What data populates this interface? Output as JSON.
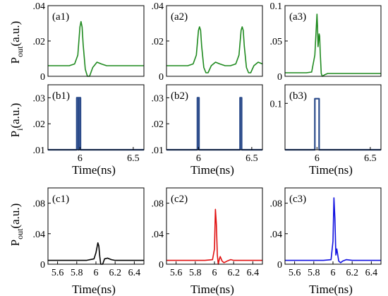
{
  "figure": {
    "ylabel_top": "P",
    "ylabel_top_sub": "out",
    "ylabel_top_unit": "(a.u.)",
    "ylabel_mid": "P",
    "ylabel_mid_sub": "i",
    "ylabel_mid_unit": "(a.u.)",
    "ylabel_bot": "P",
    "ylabel_bot_sub": "out",
    "ylabel_bot_unit": "(a.u.)",
    "xlabel": "Time(ns)"
  },
  "chart_data": [
    {
      "id": "a1",
      "label": "(a1)",
      "type": "line",
      "xlim": [
        5.7,
        6.6
      ],
      "ylim": [
        0,
        0.04
      ],
      "yticks": [
        0,
        0.02,
        0.04
      ],
      "xticks": [],
      "color": "#1f8a1f",
      "x": [
        5.7,
        5.8,
        5.9,
        5.95,
        5.98,
        6.0,
        6.01,
        6.02,
        6.03,
        6.05,
        6.07,
        6.09,
        6.12,
        6.16,
        6.2,
        6.25,
        6.3,
        6.4,
        6.5,
        6.6
      ],
      "y": [
        0.006,
        0.006,
        0.006,
        0.007,
        0.012,
        0.028,
        0.031,
        0.028,
        0.018,
        0.004,
        0.0,
        0.0,
        0.005,
        0.008,
        0.007,
        0.006,
        0.006,
        0.006,
        0.006,
        0.006
      ]
    },
    {
      "id": "a2",
      "label": "(a2)",
      "type": "line",
      "xlim": [
        5.7,
        6.6
      ],
      "ylim": [
        0,
        0.04
      ],
      "yticks": [
        0,
        0.02,
        0.04
      ],
      "xticks": [],
      "color": "#1f8a1f",
      "x": [
        5.7,
        5.8,
        5.9,
        5.95,
        5.98,
        6.0,
        6.01,
        6.02,
        6.03,
        6.05,
        6.07,
        6.09,
        6.12,
        6.16,
        6.2,
        6.25,
        6.3,
        6.35,
        6.38,
        6.4,
        6.41,
        6.42,
        6.43,
        6.45,
        6.47,
        6.49,
        6.52,
        6.56,
        6.6
      ],
      "y": [
        0.006,
        0.006,
        0.006,
        0.007,
        0.012,
        0.026,
        0.028,
        0.026,
        0.017,
        0.005,
        0.002,
        0.002,
        0.006,
        0.008,
        0.007,
        0.006,
        0.006,
        0.007,
        0.012,
        0.026,
        0.028,
        0.026,
        0.017,
        0.005,
        0.002,
        0.002,
        0.006,
        0.008,
        0.007
      ]
    },
    {
      "id": "a3",
      "label": "(a3)",
      "type": "line",
      "xlim": [
        5.7,
        6.6
      ],
      "ylim": [
        0,
        0.1
      ],
      "yticks": [
        0,
        0.05,
        0.1
      ],
      "xticks": [],
      "color": "#1f8a1f",
      "x": [
        5.7,
        5.8,
        5.9,
        5.95,
        5.98,
        6.0,
        6.005,
        6.01,
        6.02,
        6.025,
        6.03,
        6.04,
        6.05,
        6.07,
        6.1,
        6.15,
        6.2,
        6.3,
        6.4,
        6.5,
        6.6
      ],
      "y": [
        0.005,
        0.005,
        0.005,
        0.006,
        0.03,
        0.088,
        0.07,
        0.042,
        0.06,
        0.057,
        0.035,
        0.004,
        0.0,
        0.002,
        0.004,
        0.004,
        0.004,
        0.004,
        0.004,
        0.004,
        0.004
      ]
    },
    {
      "id": "b1",
      "label": "(b1)",
      "type": "line",
      "xlim": [
        5.7,
        6.6
      ],
      "ylim": [
        0.01,
        0.035
      ],
      "yticks": [
        0.01,
        0.02,
        0.03
      ],
      "xticks": [
        6,
        6.5
      ],
      "color": "#2a4a8a",
      "x": [
        5.7,
        5.97,
        5.97,
        5.985,
        5.985,
        5.99,
        5.99,
        6.005,
        6.005,
        6.6
      ],
      "y": [
        0.01,
        0.01,
        0.03,
        0.03,
        0.01,
        0.01,
        0.03,
        0.03,
        0.01,
        0.01
      ]
    },
    {
      "id": "b2",
      "label": "(b2)",
      "type": "line",
      "xlim": [
        5.7,
        6.6
      ],
      "ylim": [
        0.01,
        0.035
      ],
      "yticks": [
        0.01,
        0.02,
        0.03
      ],
      "xticks": [
        6,
        6.5
      ],
      "color": "#2a4a8a",
      "x": [
        5.7,
        5.99,
        5.99,
        6.005,
        6.005,
        6.39,
        6.39,
        6.405,
        6.405,
        6.6
      ],
      "y": [
        0.01,
        0.01,
        0.03,
        0.03,
        0.01,
        0.01,
        0.03,
        0.03,
        0.01,
        0.01
      ]
    },
    {
      "id": "b3",
      "label": "(b3)",
      "type": "line",
      "xlim": [
        5.7,
        6.6
      ],
      "ylim": [
        0,
        0.14
      ],
      "yticks": [
        0.1
      ],
      "xticks": [
        6,
        6.5
      ],
      "color": "#2a4a8a",
      "x": [
        5.7,
        5.98,
        5.98,
        6.02,
        6.02,
        6.6
      ],
      "y": [
        0.0,
        0.0,
        0.11,
        0.11,
        0.0,
        0.0
      ]
    },
    {
      "id": "c1",
      "label": "(c1)",
      "type": "line",
      "xlim": [
        5.5,
        6.5
      ],
      "ylim": [
        0,
        0.1
      ],
      "yticks": [
        0,
        0.04,
        0.08
      ],
      "xticks": [
        5.6,
        5.8,
        6,
        6.2,
        6.4
      ],
      "color": "#000000",
      "x": [
        5.5,
        5.7,
        5.9,
        5.98,
        6.0,
        6.02,
        6.03,
        6.04,
        6.05,
        6.07,
        6.09,
        6.12,
        6.16,
        6.2,
        6.3,
        6.4,
        6.5
      ],
      "y": [
        0.005,
        0.005,
        0.005,
        0.007,
        0.015,
        0.028,
        0.024,
        0.01,
        0.0,
        0.0,
        0.007,
        0.008,
        0.006,
        0.005,
        0.005,
        0.005,
        0.005
      ]
    },
    {
      "id": "c2",
      "label": "(c2)",
      "type": "line",
      "xlim": [
        5.5,
        6.5
      ],
      "ylim": [
        0,
        0.1
      ],
      "yticks": [
        0,
        0.04,
        0.08
      ],
      "xticks": [
        5.6,
        5.8,
        6,
        6.2,
        6.4
      ],
      "color": "#e01010",
      "x": [
        5.5,
        5.7,
        5.9,
        5.98,
        6.0,
        6.01,
        6.02,
        6.03,
        6.04,
        6.05,
        6.06,
        6.08,
        6.1,
        6.13,
        6.17,
        6.2,
        6.3,
        6.4,
        6.5
      ],
      "y": [
        0.005,
        0.005,
        0.005,
        0.006,
        0.02,
        0.072,
        0.052,
        0.012,
        0.0,
        0.006,
        0.01,
        0.004,
        0.002,
        0.004,
        0.006,
        0.005,
        0.005,
        0.005,
        0.005
      ]
    },
    {
      "id": "c3",
      "label": "(c3)",
      "type": "line",
      "xlim": [
        5.5,
        6.5
      ],
      "ylim": [
        0,
        0.1
      ],
      "yticks": [
        0,
        0.04,
        0.08
      ],
      "xticks": [
        5.6,
        5.8,
        6,
        6.2,
        6.4
      ],
      "color": "#1010e0",
      "x": [
        5.5,
        5.7,
        5.9,
        5.98,
        6.0,
        6.01,
        6.02,
        6.03,
        6.04,
        6.05,
        6.06,
        6.08,
        6.1,
        6.14,
        6.2,
        6.3,
        6.4,
        6.5
      ],
      "y": [
        0.005,
        0.005,
        0.005,
        0.006,
        0.03,
        0.087,
        0.06,
        0.012,
        0.02,
        0.012,
        0.004,
        0.002,
        0.004,
        0.006,
        0.005,
        0.005,
        0.005,
        0.005
      ]
    }
  ]
}
